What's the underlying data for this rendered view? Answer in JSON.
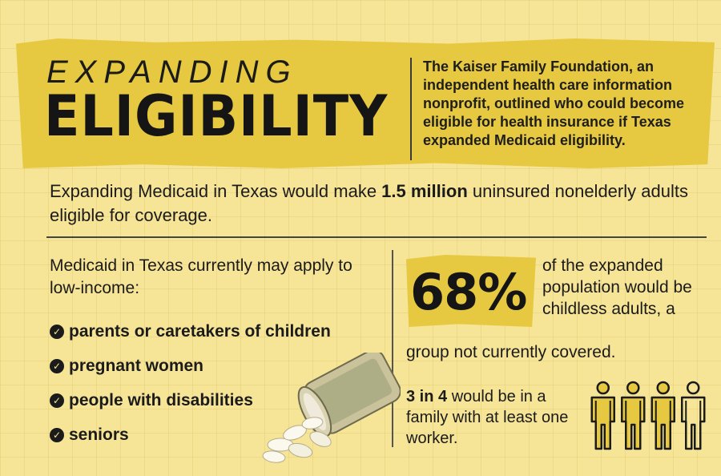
{
  "header": {
    "title_line1": "EXPANDING",
    "title_line2": "ELIGIBILITY",
    "intro": "The Kaiser Family Foundation, an independent health care information nonprofit, outlined who could become eligible for health insurance if Texas expanded Medicaid eligibility."
  },
  "headline": {
    "before": "Expanding Medicaid in Texas would make ",
    "highlight": "1.5 million",
    "after": " uninsured nonelderly adults eligible for coverage."
  },
  "current": {
    "intro": "Medicaid in Texas currently may apply to low-income:",
    "groups": [
      "parents or caretakers of children",
      "pregnant women",
      "people with disabilities",
      "seniors"
    ]
  },
  "childless": {
    "percent": "68%",
    "desc_1": "of the expanded population would be childless adults, a",
    "desc_2": "group not currently covered."
  },
  "worker": {
    "highlight": "3 in 4",
    "rest": " would be in a family with at least one worker.",
    "figures_total": 4,
    "figures_filled": 3
  },
  "icons": {
    "check": "check-icon",
    "person": "person-icon",
    "pills": "pill-bottle-icon"
  },
  "colors": {
    "background": "#f6e497",
    "accent": "#e7c941",
    "text": "#1b1b1b"
  }
}
